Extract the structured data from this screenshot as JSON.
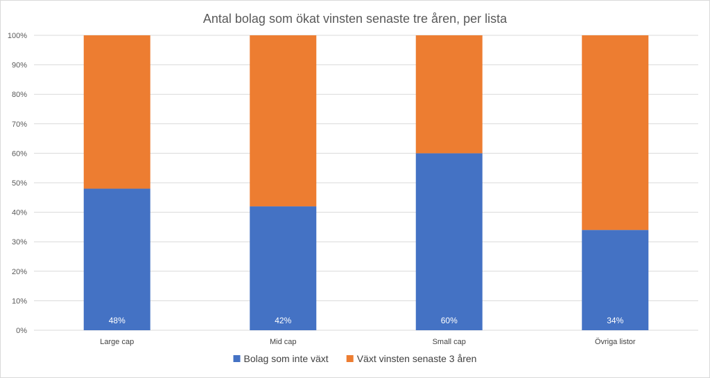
{
  "chart_data": {
    "type": "bar",
    "stacked": true,
    "percent_stacked": true,
    "title": "Antal bolag som ökat vinsten senaste tre åren, per lista",
    "categories": [
      "Large cap",
      "Mid cap",
      "Small cap",
      "Övriga listor"
    ],
    "series": [
      {
        "name": "Bolag som inte växt",
        "values": [
          48,
          42,
          60,
          34
        ],
        "color": "#4472c4",
        "data_labels": [
          "48%",
          "42%",
          "60%",
          "34%"
        ]
      },
      {
        "name": "Växt vinsten senaste 3 åren",
        "values": [
          52,
          58,
          40,
          66
        ],
        "color": "#ed7d31"
      }
    ],
    "ylim": [
      0,
      100
    ],
    "y_ticks": [
      "0%",
      "10%",
      "20%",
      "30%",
      "40%",
      "50%",
      "60%",
      "70%",
      "80%",
      "90%",
      "100%"
    ],
    "y_tick_values": [
      0,
      10,
      20,
      30,
      40,
      50,
      60,
      70,
      80,
      90,
      100
    ],
    "grid": true,
    "legend_position": "bottom",
    "gridline_color": "#d9d9d9"
  }
}
